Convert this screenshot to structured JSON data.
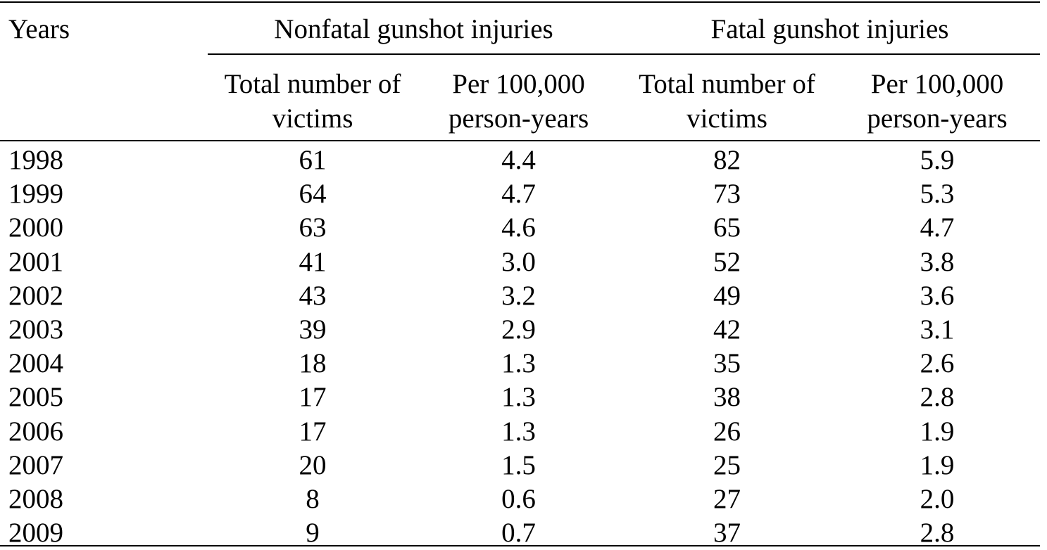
{
  "table": {
    "header": {
      "years": "Years",
      "group_nonfatal": "Nonfatal gunshot injuries",
      "group_fatal": "Fatal gunshot injuries",
      "nonfatal_total": [
        "Total number of",
        "victims"
      ],
      "nonfatal_rate": [
        "Per 100,000",
        "person-years"
      ],
      "fatal_total": [
        "Total number of",
        "victims"
      ],
      "fatal_rate": [
        "Per 100,000",
        "person-years"
      ]
    },
    "rows": [
      {
        "year": "1998",
        "nonfatal_total": "61",
        "nonfatal_rate": "4.4",
        "fatal_total": "82",
        "fatal_rate": "5.9"
      },
      {
        "year": "1999",
        "nonfatal_total": "64",
        "nonfatal_rate": "4.7",
        "fatal_total": "73",
        "fatal_rate": "5.3"
      },
      {
        "year": "2000",
        "nonfatal_total": "63",
        "nonfatal_rate": "4.6",
        "fatal_total": "65",
        "fatal_rate": "4.7"
      },
      {
        "year": "2001",
        "nonfatal_total": "41",
        "nonfatal_rate": "3.0",
        "fatal_total": "52",
        "fatal_rate": "3.8"
      },
      {
        "year": "2002",
        "nonfatal_total": "43",
        "nonfatal_rate": "3.2",
        "fatal_total": "49",
        "fatal_rate": "3.6"
      },
      {
        "year": "2003",
        "nonfatal_total": "39",
        "nonfatal_rate": "2.9",
        "fatal_total": "42",
        "fatal_rate": "3.1"
      },
      {
        "year": "2004",
        "nonfatal_total": "18",
        "nonfatal_rate": "1.3",
        "fatal_total": "35",
        "fatal_rate": "2.6"
      },
      {
        "year": "2005",
        "nonfatal_total": "17",
        "nonfatal_rate": "1.3",
        "fatal_total": "38",
        "fatal_rate": "2.8"
      },
      {
        "year": "2006",
        "nonfatal_total": "17",
        "nonfatal_rate": "1.3",
        "fatal_total": "26",
        "fatal_rate": "1.9"
      },
      {
        "year": "2007",
        "nonfatal_total": "20",
        "nonfatal_rate": "1.5",
        "fatal_total": "25",
        "fatal_rate": "1.9"
      },
      {
        "year": "2008",
        "nonfatal_total": "8",
        "nonfatal_rate": "0.6",
        "fatal_total": "27",
        "fatal_rate": "2.0"
      },
      {
        "year": "2009",
        "nonfatal_total": "9",
        "nonfatal_rate": "0.7",
        "fatal_total": "37",
        "fatal_rate": "2.8"
      }
    ]
  }
}
